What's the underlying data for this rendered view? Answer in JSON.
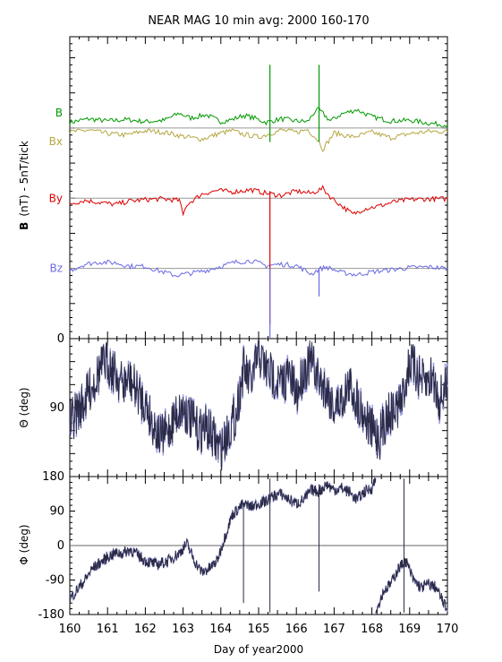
{
  "colors": {
    "B": "#009900",
    "Bx": "#b5a642",
    "By": "#dd0000",
    "Bz": "#6a6ae6",
    "angle": "#2a2a44",
    "angle_spread": "#9a9adf",
    "refline": "#999999"
  },
  "chart_data": [
    {
      "type": "line",
      "title": "NEAR MAG 10 min avg: 2000 160-170",
      "ylabel_bold": "B",
      "ylabel_rest": "(nT) - 5nT/tick",
      "xlim": [
        160,
        170
      ],
      "ylim_ticks": 43,
      "y_tick_labels": [
        {
          "value": 0,
          "label": "0"
        }
      ],
      "series": [
        {
          "name": "B",
          "offset_ticks": 30,
          "x": [
            160.0,
            160.5,
            161.0,
            161.5,
            162.0,
            162.5,
            162.9,
            163.2,
            163.6,
            164.0,
            164.3,
            164.6,
            164.9,
            165.2,
            165.35,
            165.6,
            166.0,
            166.3,
            166.5,
            166.6,
            166.9,
            167.2,
            167.6,
            168.0,
            168.5,
            169.0,
            169.5,
            170.0
          ],
          "y": [
            0.8,
            1.3,
            1.0,
            1.2,
            0.9,
            1.1,
            2.1,
            1.4,
            1.9,
            0.9,
            1.2,
            1.8,
            1.4,
            0.8,
            1.0,
            1.3,
            1.0,
            0.9,
            2.4,
            2.6,
            1.0,
            2.0,
            2.6,
            1.6,
            1.0,
            1.1,
            0.7,
            0.4
          ]
        },
        {
          "name": "Bx",
          "offset_ticks": 30,
          "x": [
            160.0,
            160.5,
            161.0,
            161.5,
            162.0,
            162.5,
            163.0,
            163.5,
            164.0,
            164.3,
            164.6,
            165.0,
            165.3,
            165.6,
            166.0,
            166.3,
            166.6,
            166.7,
            167.0,
            167.5,
            168.0,
            168.5,
            169.0,
            169.5,
            170.0
          ],
          "y": [
            -0.6,
            -0.3,
            -0.8,
            -1.0,
            -0.4,
            -0.6,
            -1.2,
            -1.6,
            -0.7,
            -0.4,
            -0.9,
            -1.3,
            -0.8,
            -0.3,
            -0.6,
            -0.2,
            -1.9,
            -3.0,
            -0.7,
            -1.3,
            -0.6,
            -1.4,
            -0.8,
            -0.5,
            -0.5
          ]
        },
        {
          "name": "By",
          "offset_ticks": 20,
          "x": [
            160.0,
            160.4,
            160.8,
            161.2,
            161.6,
            162.0,
            162.4,
            162.9,
            163.0,
            163.1,
            163.5,
            163.9,
            164.3,
            164.8,
            165.2,
            165.6,
            166.0,
            166.4,
            166.7,
            166.9,
            167.2,
            167.5,
            167.8,
            168.2,
            168.6,
            169.0,
            169.5,
            170.0
          ],
          "y": [
            -0.8,
            -0.3,
            -0.6,
            -0.9,
            -0.4,
            -0.2,
            -0.1,
            -0.3,
            -2.4,
            -0.9,
            0.6,
            1.1,
            0.9,
            1.2,
            0.7,
            0.4,
            1.0,
            0.7,
            1.4,
            0.2,
            -1.1,
            -2.3,
            -1.5,
            -1.1,
            -0.5,
            -0.2,
            -0.1,
            -0.1
          ]
        },
        {
          "name": "Bz",
          "offset_ticks": 10,
          "x": [
            160.0,
            160.4,
            160.8,
            161.2,
            161.6,
            162.0,
            162.4,
            162.8,
            163.2,
            163.6,
            164.0,
            164.4,
            164.8,
            165.2,
            165.6,
            166.0,
            166.4,
            166.6,
            166.8,
            167.2,
            167.6,
            168.0,
            168.5,
            169.0,
            169.5,
            170.0
          ],
          "y": [
            -0.3,
            0.6,
            0.9,
            0.8,
            0.3,
            0.3,
            -0.4,
            -1.0,
            -0.7,
            -0.3,
            0.3,
            0.9,
            1.1,
            0.4,
            0.6,
            0.4,
            -0.8,
            -0.1,
            0.2,
            -0.6,
            -0.9,
            -0.5,
            -0.2,
            0.1,
            0.2,
            0.0
          ]
        }
      ],
      "spikes": [
        {
          "series": "B",
          "x": 165.3,
          "from_ticks": 28,
          "to_ticks": 39
        },
        {
          "series": "B",
          "x": 166.6,
          "from_ticks": 28,
          "to_ticks": 39
        },
        {
          "series": "By",
          "x": 165.3,
          "from_ticks": 2,
          "to_ticks": 21
        },
        {
          "series": "Bz",
          "x": 165.3,
          "from_ticks": 0,
          "to_ticks": 10
        },
        {
          "series": "Bz",
          "x": 166.6,
          "from_ticks": 6,
          "to_ticks": 10
        }
      ]
    },
    {
      "type": "line",
      "ylabel": "Θ (deg)",
      "xlim": [
        160,
        170
      ],
      "ylim": [
        180,
        0
      ],
      "y_tick_labels": [
        {
          "value": 0,
          "label": "0"
        },
        {
          "value": 90,
          "label": "90"
        }
      ],
      "x": [
        160.0,
        160.2,
        160.4,
        160.6,
        160.8,
        161.0,
        161.2,
        161.4,
        161.6,
        161.8,
        162.0,
        162.2,
        162.4,
        162.6,
        162.8,
        163.0,
        163.2,
        163.4,
        163.6,
        163.8,
        164.0,
        164.2,
        164.4,
        164.6,
        164.8,
        165.0,
        165.2,
        165.4,
        165.6,
        165.8,
        166.0,
        166.2,
        166.4,
        166.6,
        166.8,
        167.0,
        167.2,
        167.4,
        167.6,
        167.8,
        168.0,
        168.2,
        168.4,
        168.6,
        168.8,
        169.0,
        169.2,
        169.4,
        169.6,
        169.8,
        170.0
      ],
      "y": [
        110,
        95,
        80,
        60,
        40,
        30,
        45,
        60,
        55,
        70,
        85,
        110,
        130,
        120,
        100,
        90,
        105,
        120,
        115,
        130,
        145,
        120,
        100,
        40,
        60,
        20,
        40,
        50,
        60,
        45,
        75,
        40,
        30,
        55,
        65,
        90,
        80,
        60,
        80,
        100,
        120,
        130,
        100,
        95,
        80,
        30,
        45,
        60,
        50,
        80,
        60
      ]
    },
    {
      "type": "line",
      "ylabel": "Φ (deg)",
      "xlim": [
        160,
        170
      ],
      "ylim": [
        -180,
        180
      ],
      "y_tick_labels": [
        {
          "value": 180,
          "label": "180"
        },
        {
          "value": 90,
          "label": "90"
        },
        {
          "value": 0,
          "label": "0"
        },
        {
          "value": -90,
          "label": "-90"
        },
        {
          "value": -180,
          "label": "-180"
        }
      ],
      "x_tick_labels": [
        "160",
        "161",
        "162",
        "163",
        "164",
        "165",
        "166",
        "167",
        "168",
        "169",
        "170"
      ],
      "xlabel": "Day of year2000",
      "segments": [
        {
          "x": [
            160.0,
            160.2,
            160.4,
            160.6,
            160.8,
            161.0,
            161.2,
            161.4,
            161.6,
            161.8,
            162.0,
            162.3,
            162.6,
            162.9,
            163.1,
            163.3,
            163.5,
            163.7,
            163.9,
            164.1,
            164.3,
            164.6
          ],
          "y": [
            -140,
            -115,
            -90,
            -60,
            -45,
            -30,
            -20,
            -20,
            -10,
            -25,
            -40,
            -50,
            -40,
            -20,
            5,
            -40,
            -70,
            -60,
            -40,
            20,
            80,
            110
          ]
        },
        {
          "x": [
            164.6,
            164.8,
            165.0,
            165.2,
            165.4,
            165.6,
            165.8,
            166.0,
            166.2,
            166.4,
            166.6,
            166.8,
            167.0,
            167.2,
            167.4,
            167.6,
            167.8,
            168.0,
            168.1
          ],
          "y": [
            110,
            100,
            110,
            115,
            130,
            135,
            120,
            110,
            120,
            145,
            140,
            160,
            145,
            150,
            140,
            120,
            140,
            150,
            175
          ]
        },
        {
          "x": [
            168.1,
            168.3,
            168.5,
            168.7,
            168.9,
            169.1,
            169.3,
            169.5,
            169.7,
            169.9,
            170.0
          ],
          "y": [
            -175,
            -120,
            -100,
            -60,
            -40,
            -90,
            -110,
            -100,
            -110,
            -150,
            -170
          ]
        }
      ]
    }
  ]
}
